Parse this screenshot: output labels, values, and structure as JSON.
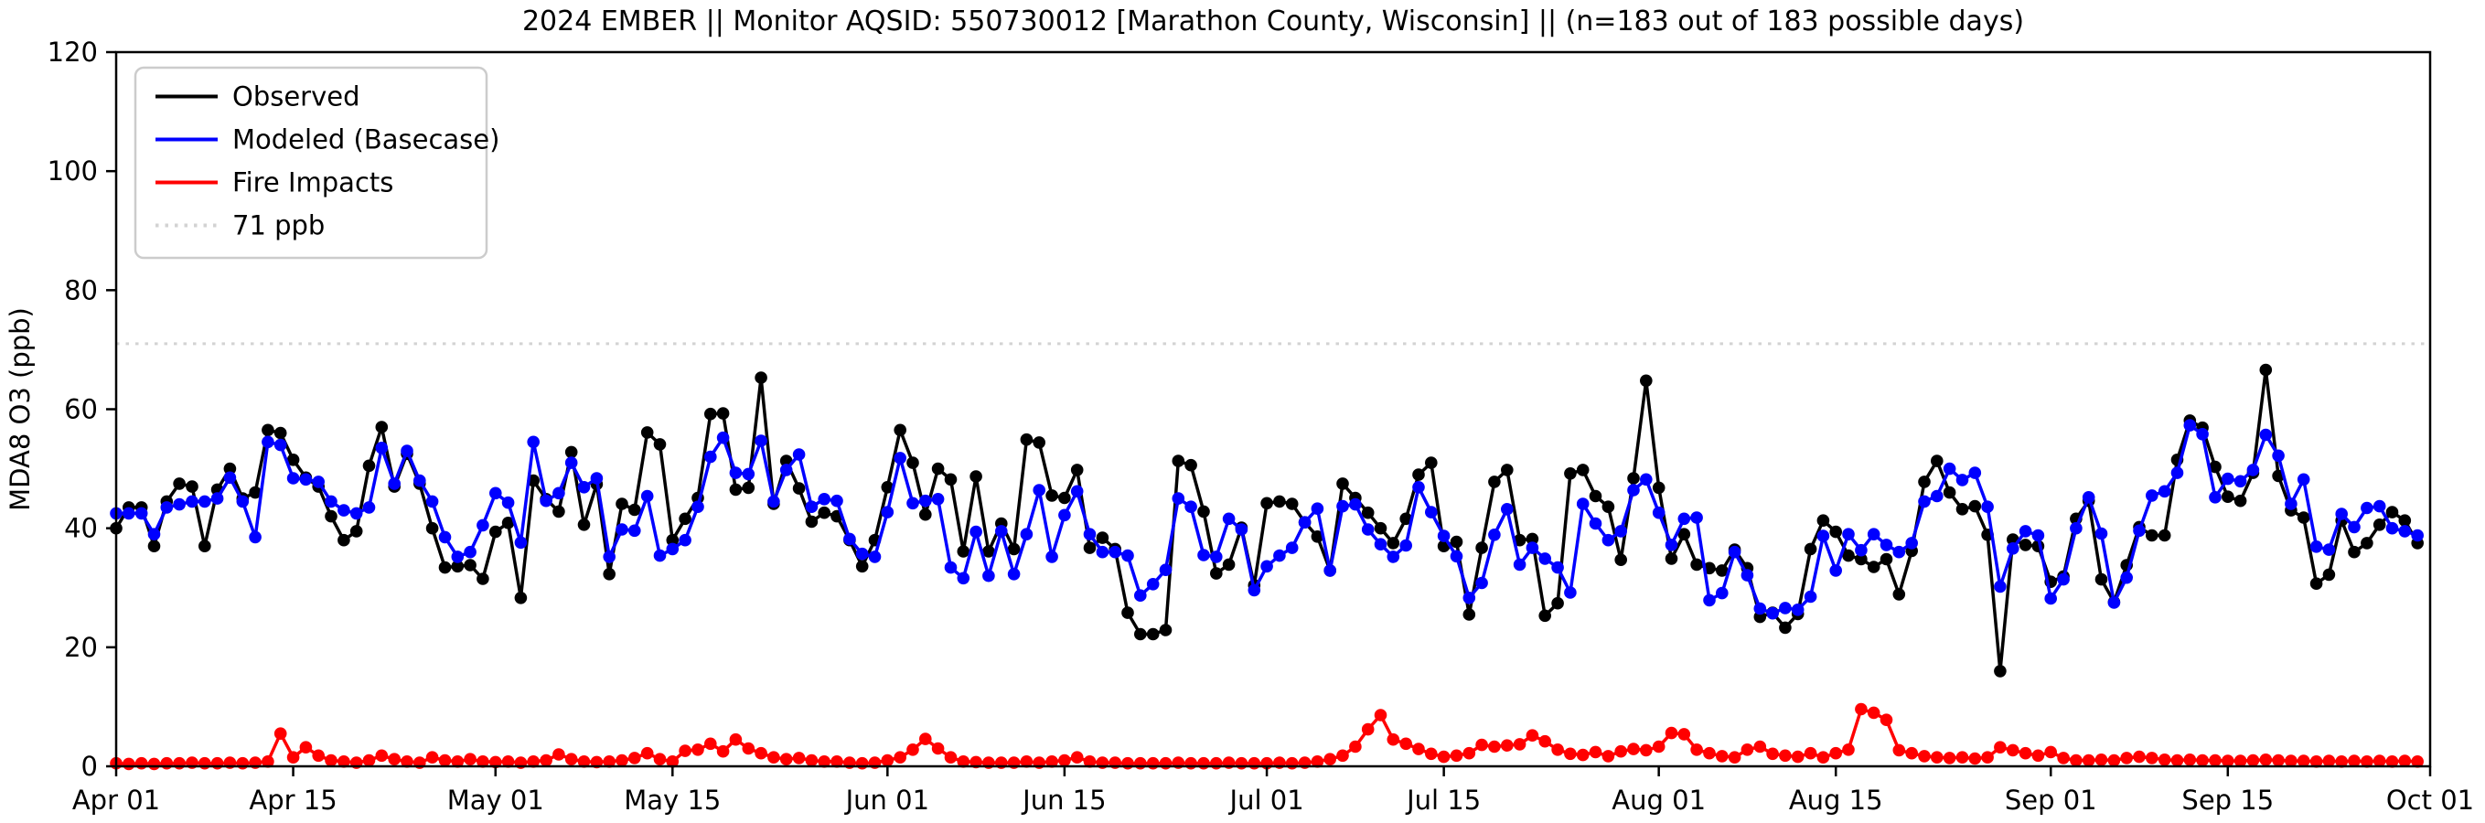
{
  "title": "2024 EMBER || Monitor AQSID: 550730012 [Marathon County, Wisconsin] || (n=183 out of 183 possible days)",
  "colors": {
    "observed": "#000000",
    "modeled": "#0000ff",
    "fire": "#ff0000",
    "threshold": "#d3d3d3",
    "legend_border": "#cccccc",
    "axis": "#000000",
    "background": "#ffffff"
  },
  "legend": [
    {
      "label": "Observed",
      "color": "#000000",
      "style": "solid"
    },
    {
      "label": "Modeled (Basecase)",
      "color": "#0000ff",
      "style": "solid"
    },
    {
      "label": "Fire Impacts",
      "color": "#ff0000",
      "style": "solid"
    },
    {
      "label": "71 ppb",
      "color": "#d3d3d3",
      "style": "dotted"
    }
  ],
  "chart_data": {
    "type": "line",
    "title": "2024 EMBER || Monitor AQSID: 550730012 [Marathon County, Wisconsin] || (n=183 out of 183 possible days)",
    "xlabel": "",
    "ylabel": "MDA8 O3 (ppb)",
    "ylim": [
      0,
      120
    ],
    "yticks": [
      0,
      20,
      40,
      60,
      80,
      100,
      120
    ],
    "x_start_date": "Apr 01",
    "x_end_date": "Oct 01",
    "n_days": 183,
    "xtick_days": [
      0,
      14,
      30,
      44,
      61,
      75,
      91,
      105,
      122,
      136,
      153,
      167,
      183
    ],
    "xtick_labels": [
      "Apr 01",
      "Apr 15",
      "May 01",
      "May 15",
      "Jun 01",
      "Jun 15",
      "Jul 01",
      "Jul 15",
      "Aug 01",
      "Aug 15",
      "Sep 01",
      "Sep 15",
      "Oct 01"
    ],
    "threshold_line": {
      "value": 71,
      "label": "71 ppb"
    },
    "legend_position": "upper left",
    "grid": false,
    "series": [
      {
        "name": "Observed",
        "color": "#000000",
        "marker": "circle",
        "values": [
          40,
          43.5,
          43.5,
          37,
          44.5,
          47.5,
          47,
          37,
          46.5,
          50,
          45,
          46,
          56.5,
          56,
          51.5,
          48.5,
          47,
          42,
          38,
          39.5,
          50.5,
          57,
          47,
          52.5,
          47.5,
          40,
          33.4,
          33.6,
          33.8,
          31.5,
          39.4,
          40.9,
          28.3,
          48,
          44.9,
          42.8,
          52.8,
          40.6,
          47.4,
          32.3,
          44.1,
          43.1,
          56.1,
          54.1,
          38,
          41.6,
          45.1,
          59.2,
          59.3,
          46.5,
          46.8,
          65.3,
          44.1,
          51.3,
          46.7,
          41.1,
          42.6,
          42,
          38,
          33.6,
          38,
          46.9,
          56.5,
          51,
          42.3,
          50,
          48.2,
          36.1,
          48.7,
          36.1,
          40.8,
          36.5,
          54.9,
          54.4,
          45.5,
          45.1,
          49.8,
          36.7,
          38.4,
          36.5,
          25.8,
          22.2,
          22.2,
          22.9,
          51.3,
          50.6,
          42.8,
          32.4,
          33.9,
          40.1,
          30.4,
          44.2,
          44.5,
          44.1,
          41,
          38.6,
          32.9,
          47.5,
          45.1,
          42.6,
          40,
          37.5,
          41.6,
          49,
          51,
          37,
          37.7,
          25.5,
          36.7,
          47.8,
          49.8,
          38,
          38.2,
          25.3,
          27.4,
          49.2,
          49.8,
          45.4,
          43.6,
          34.7,
          48.4,
          64.8,
          46.8,
          34.9,
          39,
          33.9,
          33.3,
          32.9,
          36.4,
          33.3,
          25.1,
          25.8,
          23.3,
          25.6,
          36.5,
          41.3,
          39.4,
          35.4,
          34.8,
          33.5,
          34.8,
          28.9,
          36.2,
          47.8,
          51.3,
          46,
          43.2,
          43.7,
          38.9,
          16,
          38.1,
          37.2,
          37,
          31,
          31.9,
          41.6,
          44.6,
          31.4,
          27.6,
          33.8,
          40.2,
          38.8,
          38.8,
          51.5,
          58.1,
          56.9,
          50.3,
          45.3,
          44.6,
          49.3,
          66.6,
          48.8,
          43,
          41.8,
          30.7,
          32.2,
          41.3,
          36,
          37.5,
          40.6,
          42.7,
          41.3,
          37.5
        ]
      },
      {
        "name": "Modeled (Basecase)",
        "color": "#0000ff",
        "marker": "circle",
        "values": [
          42.5,
          42.5,
          42.5,
          39,
          43.5,
          44,
          44.5,
          44.5,
          45,
          48.5,
          44.5,
          38.5,
          54.5,
          54,
          48.4,
          48.2,
          47.8,
          44.5,
          43,
          42.5,
          43.5,
          53.5,
          47.5,
          53,
          48,
          44.5,
          38.5,
          35.2,
          36,
          40.5,
          45.9,
          44.3,
          37.6,
          54.5,
          44.6,
          45.9,
          51,
          46.9,
          48.4,
          35.2,
          39.8,
          39.6,
          45.4,
          35.4,
          36.5,
          38,
          43.6,
          52,
          55.2,
          49.3,
          49.1,
          54.7,
          44.5,
          49.8,
          52.4,
          43.6,
          44.9,
          44.6,
          38.2,
          35.7,
          35.2,
          42.7,
          51.8,
          44.2,
          44.6,
          44.9,
          33.4,
          31.6,
          39.4,
          32,
          39.5,
          32.3,
          39,
          46.4,
          35.2,
          42.2,
          46.2,
          39,
          36,
          36,
          35.4,
          28.7,
          30.6,
          33,
          45,
          43.6,
          35.5,
          35.2,
          41.6,
          39.8,
          29.6,
          33.6,
          35.4,
          36.7,
          41,
          43.3,
          32.9,
          43.7,
          44,
          39.8,
          37.3,
          35.2,
          37.1,
          46.9,
          42.7,
          38.7,
          35.3,
          28.3,
          30.8,
          38.9,
          43.2,
          33.9,
          36.7,
          34.9,
          33.4,
          29.2,
          44.1,
          40.8,
          38,
          39.5,
          46.4,
          48.2,
          42.6,
          37.2,
          41.6,
          41.8,
          27.9,
          29.1,
          36,
          32.1,
          26.5,
          25.7,
          26.6,
          26.3,
          28.5,
          38.7,
          32.9,
          39,
          36.3,
          39,
          37.2,
          36,
          37.5,
          44.5,
          45.4,
          50,
          48.1,
          49.3,
          43.6,
          30.2,
          36.6,
          39.5,
          38.8,
          28.2,
          31.4,
          40,
          45.2,
          39.1,
          27.5,
          31.7,
          39.6,
          45.5,
          46.2,
          49.3,
          57.3,
          55.8,
          45.2,
          48.3,
          47.9,
          49.8,
          55.7,
          52.2,
          44.1,
          48.2,
          36.9,
          36.4,
          42.4,
          40.2,
          43.4,
          43.7,
          40,
          39.5,
          38.8
        ]
      },
      {
        "name": "Fire Impacts",
        "color": "#ff0000",
        "marker": "circle",
        "values": [
          0.5,
          0.4,
          0.5,
          0.4,
          0.5,
          0.5,
          0.6,
          0.5,
          0.5,
          0.6,
          0.5,
          0.6,
          0.8,
          5.5,
          1.5,
          3.2,
          1.8,
          1,
          0.8,
          0.6,
          1,
          1.8,
          1.2,
          0.8,
          0.6,
          1.5,
          1,
          0.8,
          1.2,
          0.8,
          0.7,
          0.8,
          0.6,
          0.8,
          1,
          2,
          1.2,
          0.8,
          0.7,
          0.8,
          1,
          1.4,
          2.2,
          1.2,
          0.8,
          2.6,
          2.8,
          3.8,
          2.5,
          4.5,
          3,
          2.2,
          1.5,
          1.2,
          1.4,
          1,
          0.8,
          0.8,
          0.6,
          0.5,
          0.6,
          1,
          1.5,
          2.8,
          4.6,
          3,
          1.5,
          0.8,
          0.7,
          0.6,
          0.6,
          0.6,
          0.8,
          0.6,
          0.8,
          1,
          1.5,
          0.8,
          0.6,
          0.6,
          0.5,
          0.5,
          0.5,
          0.5,
          0.6,
          0.5,
          0.5,
          0.5,
          0.6,
          0.5,
          0.5,
          0.5,
          0.6,
          0.5,
          0.6,
          0.8,
          1.2,
          1.8,
          3.3,
          6.2,
          8.6,
          4.5,
          3.8,
          2.9,
          2.1,
          1.6,
          1.8,
          2.2,
          3.6,
          3.3,
          3.5,
          3.7,
          5.2,
          4.2,
          2.8,
          2.1,
          1.9,
          2.4,
          1.7,
          2.5,
          2.9,
          2.7,
          3.3,
          5.6,
          5.4,
          2.8,
          2.2,
          1.7,
          1.5,
          2.8,
          3.3,
          2.1,
          1.8,
          1.6,
          2.2,
          1.5,
          2.2,
          2.8,
          9.6,
          9,
          7.8,
          2.7,
          2.2,
          1.7,
          1.5,
          1.4,
          1.5,
          1.3,
          1.5,
          3.2,
          2.7,
          2.2,
          1.8,
          2.4,
          1.4,
          1,
          1,
          1.1,
          1,
          1.4,
          1.6,
          1.4,
          1.1,
          1,
          1.1,
          1,
          1,
          0.9,
          0.9,
          1,
          1.1,
          1,
          0.9,
          0.9,
          0.8,
          0.9,
          0.8,
          0.9,
          0.8,
          0.9,
          0.8,
          0.9,
          0.8
        ]
      }
    ]
  }
}
